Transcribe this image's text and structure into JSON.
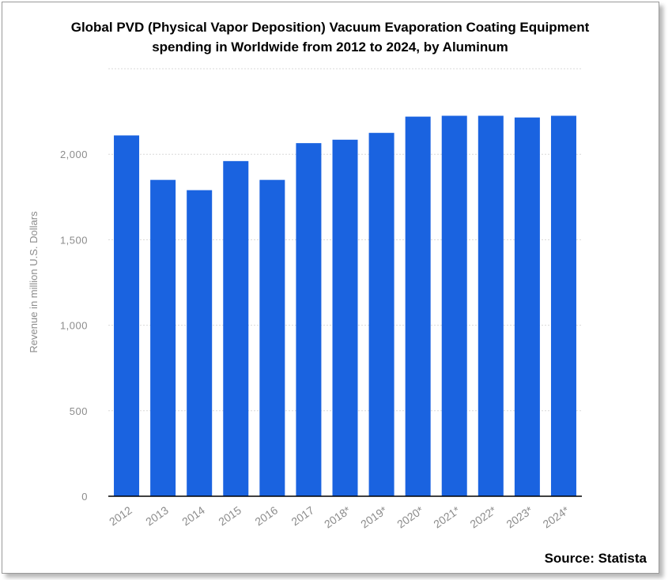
{
  "title_line1": "Global PVD (Physical Vapor Deposition) Vacuum Evaporation Coating Equipment",
  "title_line2": "spending in Worldwide from 2012 to 2024, by Aluminum",
  "source": "Source: Statista",
  "colors": {
    "bar": "#1a63e0",
    "grid": "#d9d9d9",
    "tick_label": "#8c8c8c",
    "axis": "#000000"
  },
  "chart_data": {
    "type": "bar",
    "categories": [
      "2012",
      "2013",
      "2014",
      "2015",
      "2016",
      "2017",
      "2018*",
      "2019*",
      "2020*",
      "2021*",
      "2022*",
      "2023*",
      "2024*"
    ],
    "values": [
      2110,
      1850,
      1790,
      1960,
      1850,
      2065,
      2085,
      2125,
      2220,
      2225,
      2225,
      2215,
      2225
    ],
    "ylabel": "Revenue in million U.S. Dollars",
    "xlabel": "",
    "ylim": [
      0,
      2500
    ],
    "yticks": [
      0,
      500,
      1000,
      1500,
      2000
    ],
    "ytick_labels": [
      "0",
      "500",
      "1,000",
      "1,500",
      "2,000"
    ],
    "grid": true,
    "legend": "none"
  }
}
